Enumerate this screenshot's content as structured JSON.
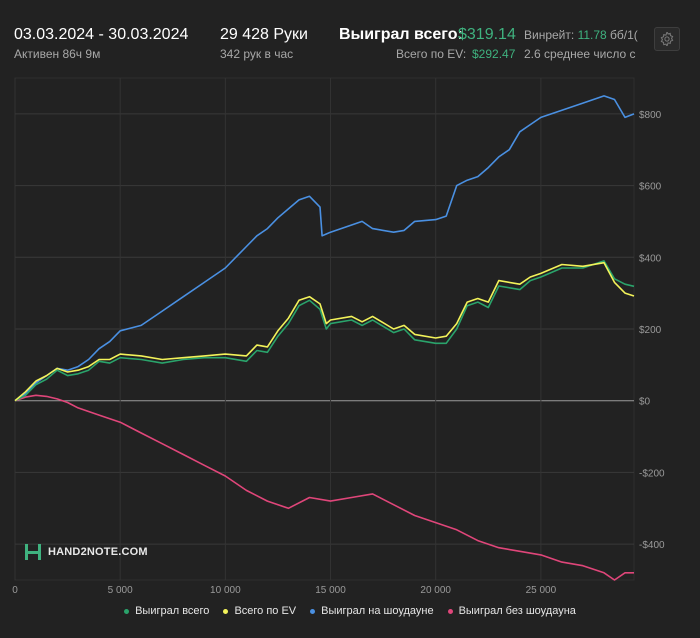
{
  "header": {
    "date_range": "03.03.2024 - 30.03.2024",
    "active": "Активен 86ч 9м",
    "hands": "29 428 Руки",
    "hands_per_hour": "342 рук в час",
    "won_total_label": "Выиграл всего:",
    "won_total_value": "$319.14",
    "ev_label": "Всего по EV:",
    "ev_value": "$292.47",
    "winrate_label": "Винрейт:",
    "winrate_value": "11.78",
    "winrate_unit": "бб/1(",
    "avg_players": "2.6 среднее число с"
  },
  "watermark": "HAND2NOTE.COM",
  "colors": {
    "won_total": "#2aa36b",
    "ev": "#f3f35a",
    "showdown": "#4a90e2",
    "no_showdown": "#e0467a",
    "accent_green": "#3fb27f"
  },
  "chart_data": {
    "type": "line",
    "title": "",
    "xlabel": "",
    "ylabel": "",
    "xlim": [
      0,
      29428
    ],
    "ylim": [
      -500,
      900
    ],
    "x_ticks": [
      0,
      5000,
      10000,
      15000,
      20000,
      25000
    ],
    "x_tick_labels": [
      "0",
      "5 000",
      "10 000",
      "15 000",
      "20 000",
      "25 000"
    ],
    "y_ticks": [
      -400,
      -200,
      0,
      200,
      400,
      600,
      800
    ],
    "y_tick_labels": [
      "-$400",
      "-$200",
      "$0",
      "$200",
      "$400",
      "$600",
      "$800"
    ],
    "grid": true,
    "legend_position": "bottom",
    "series": [
      {
        "name": "Выиграл всего",
        "color": "#2aa36b",
        "x": [
          0,
          500,
          1000,
          1500,
          2000,
          2500,
          3000,
          3500,
          4000,
          4500,
          5000,
          6000,
          7000,
          8000,
          9000,
          10000,
          11000,
          11500,
          12000,
          12500,
          13000,
          13500,
          14000,
          14500,
          14800,
          15000,
          16000,
          16500,
          17000,
          18000,
          18500,
          19000,
          20000,
          20500,
          21000,
          21500,
          22000,
          22500,
          23000,
          24000,
          24500,
          25000,
          26000,
          27000,
          28000,
          28500,
          29000,
          29428
        ],
        "y": [
          0,
          15,
          45,
          60,
          85,
          70,
          75,
          85,
          110,
          105,
          120,
          115,
          105,
          115,
          120,
          120,
          110,
          140,
          135,
          180,
          215,
          265,
          280,
          255,
          200,
          215,
          225,
          210,
          225,
          190,
          200,
          170,
          160,
          160,
          200,
          265,
          275,
          260,
          320,
          310,
          335,
          345,
          370,
          370,
          390,
          340,
          325,
          319
        ]
      },
      {
        "name": "Всего по EV",
        "color": "#f3f35a",
        "x": [
          0,
          500,
          1000,
          1500,
          2000,
          2500,
          3000,
          3500,
          4000,
          4500,
          5000,
          6000,
          7000,
          8000,
          9000,
          10000,
          11000,
          11500,
          12000,
          12500,
          13000,
          13500,
          14000,
          14500,
          14800,
          15000,
          16000,
          16500,
          17000,
          18000,
          18500,
          19000,
          20000,
          20500,
          21000,
          21500,
          22000,
          22500,
          23000,
          24000,
          24500,
          25000,
          26000,
          27000,
          28000,
          28500,
          29000,
          29428
        ],
        "y": [
          0,
          25,
          55,
          70,
          90,
          80,
          85,
          95,
          115,
          115,
          130,
          125,
          115,
          120,
          125,
          130,
          125,
          155,
          150,
          195,
          230,
          280,
          290,
          270,
          215,
          225,
          235,
          220,
          235,
          200,
          210,
          185,
          175,
          180,
          215,
          275,
          285,
          275,
          335,
          325,
          345,
          355,
          380,
          375,
          385,
          330,
          300,
          292
        ]
      },
      {
        "name": "Выиграл на шоудауне",
        "color": "#4a90e2",
        "x": [
          0,
          500,
          1000,
          1500,
          2000,
          2500,
          3000,
          3500,
          4000,
          4500,
          5000,
          6000,
          7000,
          8000,
          9000,
          10000,
          11000,
          11500,
          12000,
          12500,
          13000,
          13500,
          14000,
          14500,
          14600,
          14800,
          15000,
          16000,
          16500,
          17000,
          18000,
          18500,
          19000,
          20000,
          20500,
          21000,
          21500,
          22000,
          22500,
          23000,
          23500,
          24000,
          24500,
          25000,
          26000,
          27000,
          28000,
          28500,
          29000,
          29428
        ],
        "y": [
          0,
          20,
          50,
          70,
          90,
          85,
          95,
          115,
          145,
          165,
          195,
          210,
          250,
          290,
          330,
          370,
          430,
          460,
          480,
          510,
          535,
          560,
          570,
          540,
          460,
          465,
          470,
          490,
          500,
          480,
          470,
          475,
          500,
          505,
          515,
          600,
          615,
          625,
          650,
          680,
          700,
          750,
          770,
          790,
          810,
          830,
          850,
          840,
          790,
          800
        ]
      },
      {
        "name": "Выиграл без шоудауна",
        "color": "#e0467a",
        "x": [
          0,
          500,
          1000,
          1500,
          2000,
          2500,
          3000,
          4000,
          5000,
          6000,
          7000,
          8000,
          9000,
          10000,
          11000,
          12000,
          13000,
          14000,
          15000,
          16000,
          17000,
          18000,
          19000,
          20000,
          21000,
          22000,
          23000,
          24000,
          25000,
          26000,
          27000,
          28000,
          28500,
          29000,
          29428
        ],
        "y": [
          0,
          10,
          15,
          12,
          5,
          -5,
          -20,
          -40,
          -60,
          -90,
          -120,
          -150,
          -180,
          -210,
          -250,
          -280,
          -300,
          -270,
          -280,
          -270,
          -260,
          -290,
          -320,
          -340,
          -360,
          -390,
          -410,
          -420,
          -430,
          -450,
          -460,
          -480,
          -500,
          -480,
          -480
        ]
      }
    ]
  }
}
